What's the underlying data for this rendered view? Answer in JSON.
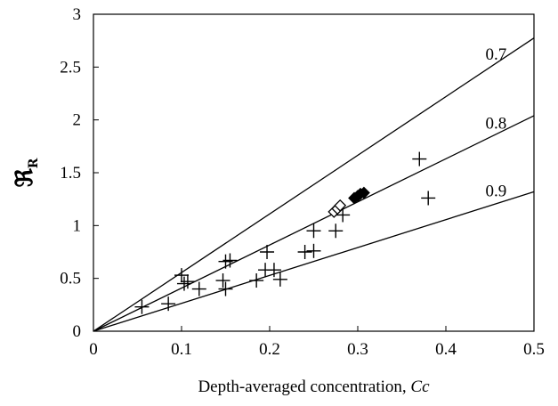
{
  "chart_data": {
    "type": "scatter",
    "xlabel": "Depth-averaged concentration, ",
    "xlabel_italic": "Cc",
    "ylabel": "ℜ",
    "ylabel_sub": "R",
    "xlim": [
      0,
      0.5
    ],
    "ylim": [
      0,
      3
    ],
    "x_ticks": [
      "0",
      "0.1",
      "0.2",
      "0.3",
      "0.4",
      "0.5"
    ],
    "y_ticks": [
      "0",
      "0.5",
      "1",
      "1.5",
      "2",
      "2.5",
      "3"
    ],
    "grid": false,
    "reference_lines": [
      {
        "label": "0.7",
        "slope": 5.55
      },
      {
        "label": "0.8",
        "slope": 4.08
      },
      {
        "label": "0.9",
        "slope": 2.64
      }
    ],
    "series": [
      {
        "marker": "plus",
        "points": [
          [
            0.055,
            0.23
          ],
          [
            0.085,
            0.26
          ],
          [
            0.1,
            0.53
          ],
          [
            0.103,
            0.45
          ],
          [
            0.107,
            0.47
          ],
          [
            0.12,
            0.4
          ],
          [
            0.147,
            0.48
          ],
          [
            0.15,
            0.66
          ],
          [
            0.15,
            0.4
          ],
          [
            0.155,
            0.67
          ],
          [
            0.185,
            0.48
          ],
          [
            0.195,
            0.58
          ],
          [
            0.197,
            0.75
          ],
          [
            0.205,
            0.58
          ],
          [
            0.212,
            0.49
          ],
          [
            0.24,
            0.75
          ],
          [
            0.25,
            0.76
          ],
          [
            0.25,
            0.95
          ],
          [
            0.275,
            0.95
          ],
          [
            0.283,
            1.1
          ],
          [
            0.37,
            1.63
          ],
          [
            0.38,
            1.26
          ]
        ]
      },
      {
        "marker": "diamond-open",
        "points": [
          [
            0.273,
            1.13
          ],
          [
            0.277,
            1.16
          ],
          [
            0.28,
            1.19
          ]
        ]
      },
      {
        "marker": "diamond-filled",
        "points": [
          [
            0.296,
            1.26
          ],
          [
            0.3,
            1.28
          ],
          [
            0.303,
            1.3
          ],
          [
            0.307,
            1.31
          ]
        ]
      }
    ]
  }
}
